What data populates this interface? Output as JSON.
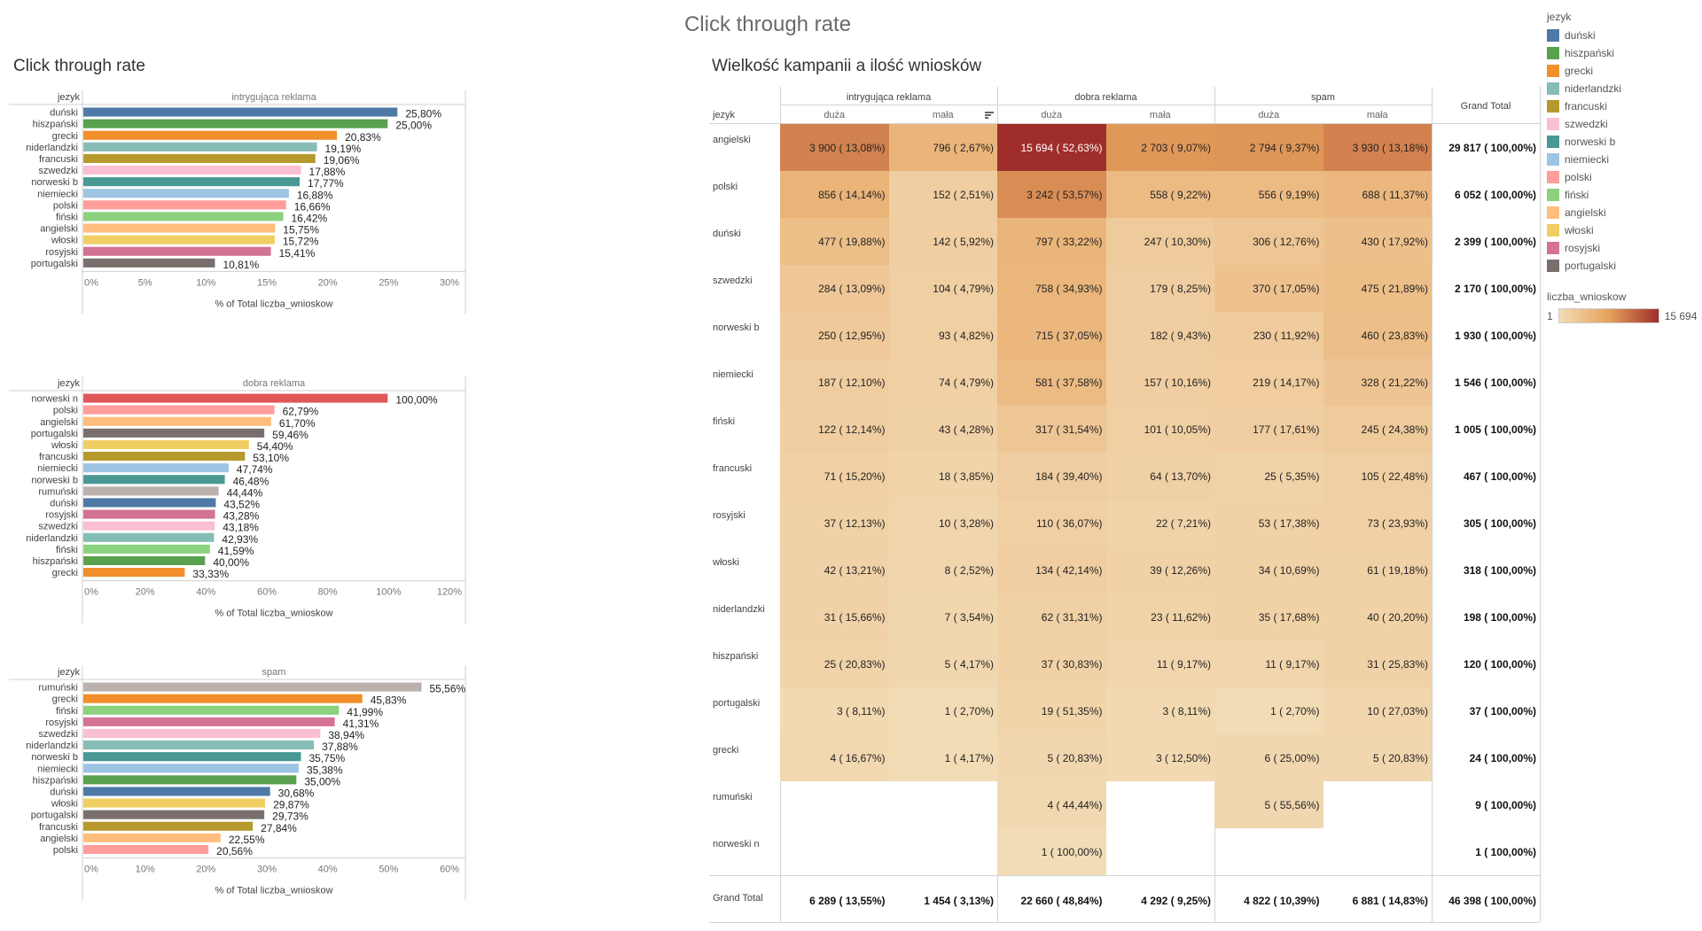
{
  "dashboard_title": "Click through rate",
  "left_title": "Click through rate",
  "right_title": "Wielkość kampanii a ilość wniosków",
  "legend": {
    "title": "jezyk",
    "items": [
      {
        "label": "duński",
        "color": "#4e79a7"
      },
      {
        "label": "hiszpański",
        "color": "#59a14f"
      },
      {
        "label": "grecki",
        "color": "#f28e2b"
      },
      {
        "label": "niderlandzki",
        "color": "#86bcb6"
      },
      {
        "label": "francuski",
        "color": "#b6992d"
      },
      {
        "label": "szwedzki",
        "color": "#fabfd2"
      },
      {
        "label": "norweski b",
        "color": "#499894"
      },
      {
        "label": "niemiecki",
        "color": "#9dc4e3"
      },
      {
        "label": "polski",
        "color": "#ff9d9a"
      },
      {
        "label": "fiński",
        "color": "#8cd17d"
      },
      {
        "label": "angielski",
        "color": "#ffbe7d"
      },
      {
        "label": "włoski",
        "color": "#f1ce63"
      },
      {
        "label": "rosyjski",
        "color": "#d37295"
      },
      {
        "label": "portugalski",
        "color": "#79706e"
      }
    ],
    "extra_colors": {
      "norweski n": "#e15759",
      "rumuński": "#bab0ac"
    },
    "gradient_title": "liczba_wnioskow",
    "gradient_min": "1",
    "gradient_max": "15 694"
  },
  "chart_data": [
    {
      "type": "bar",
      "orientation": "horizontal",
      "header": "intrygująca reklama",
      "row_header": "jezyk",
      "xlabel": "% of Total liczba_wnioskow",
      "xlim": [
        0,
        30
      ],
      "ticks": [
        "0%",
        "5%",
        "10%",
        "15%",
        "20%",
        "25%",
        "30%"
      ],
      "categories": [
        "duński",
        "hiszpański",
        "grecki",
        "niderlandzki",
        "francuski",
        "szwedzki",
        "norweski b",
        "niemiecki",
        "polski",
        "fiński",
        "angielski",
        "włoski",
        "rosyjski",
        "portugalski"
      ],
      "values": [
        25.8,
        25.0,
        20.83,
        19.19,
        19.06,
        17.88,
        17.77,
        16.88,
        16.66,
        16.42,
        15.75,
        15.72,
        15.41,
        10.81
      ],
      "labels": [
        "25,80%",
        "25,00%",
        "20,83%",
        "19,19%",
        "19,06%",
        "17,88%",
        "17,77%",
        "16,88%",
        "16,66%",
        "16,42%",
        "15,75%",
        "15,72%",
        "15,41%",
        "10,81%"
      ]
    },
    {
      "type": "bar",
      "orientation": "horizontal",
      "header": "dobra reklama",
      "row_header": "jezyk",
      "xlabel": "% of Total liczba_wnioskow",
      "xlim": [
        0,
        120
      ],
      "ticks": [
        "0%",
        "20%",
        "40%",
        "60%",
        "80%",
        "100%",
        "120%"
      ],
      "categories": [
        "norweski n",
        "polski",
        "angielski",
        "portugalski",
        "włoski",
        "francuski",
        "niemiecki",
        "norweski b",
        "rumuński",
        "duński",
        "rosyjski",
        "szwedzki",
        "niderlandzki",
        "fiński",
        "hiszpański",
        "grecki"
      ],
      "values": [
        100.0,
        62.79,
        61.7,
        59.46,
        54.4,
        53.1,
        47.74,
        46.48,
        44.44,
        43.52,
        43.28,
        43.18,
        42.93,
        41.59,
        40.0,
        33.33
      ],
      "labels": [
        "100,00%",
        "62,79%",
        "61,70%",
        "59,46%",
        "54,40%",
        "53,10%",
        "47,74%",
        "46,48%",
        "44,44%",
        "43,52%",
        "43,28%",
        "43,18%",
        "42,93%",
        "41,59%",
        "40,00%",
        "33,33%"
      ]
    },
    {
      "type": "bar",
      "orientation": "horizontal",
      "header": "spam",
      "row_header": "jezyk",
      "xlabel": "% of Total liczba_wnioskow",
      "xlim": [
        0,
        60
      ],
      "ticks": [
        "0%",
        "10%",
        "20%",
        "30%",
        "40%",
        "50%",
        "60%"
      ],
      "categories": [
        "rumuński",
        "grecki",
        "fiński",
        "rosyjski",
        "szwedzki",
        "niderlandzki",
        "norweski b",
        "niemiecki",
        "hiszpański",
        "duński",
        "włoski",
        "portugalski",
        "francuski",
        "angielski",
        "polski"
      ],
      "values": [
        55.56,
        45.83,
        41.99,
        41.31,
        38.94,
        37.88,
        35.75,
        35.38,
        35.0,
        30.68,
        29.87,
        29.73,
        27.84,
        22.55,
        20.56
      ],
      "labels": [
        "55,56%",
        "45,83%",
        "41,99%",
        "41,31%",
        "38,94%",
        "37,88%",
        "35,75%",
        "35,38%",
        "35,00%",
        "30,68%",
        "29,87%",
        "29,73%",
        "27,84%",
        "22,55%",
        "20,56%"
      ]
    },
    {
      "type": "heatmap",
      "row_header": "jezyk",
      "groups": [
        "intrygująca reklama",
        "dobra reklama",
        "spam"
      ],
      "sub_columns": [
        "duża",
        "mała"
      ],
      "grand_total_label": "Grand Total",
      "rows": [
        "angielski",
        "polski",
        "duński",
        "szwedzki",
        "norweski b",
        "niemiecki",
        "fiński",
        "francuski",
        "rosyjski",
        "włoski",
        "niderlandzki",
        "hiszpański",
        "portugalski",
        "grecki",
        "rumuński",
        "norweski n"
      ],
      "values": [
        [
          3900,
          796,
          15694,
          2703,
          2794,
          3930
        ],
        [
          856,
          152,
          3242,
          558,
          556,
          688
        ],
        [
          477,
          142,
          797,
          247,
          306,
          430
        ],
        [
          284,
          104,
          758,
          179,
          370,
          475
        ],
        [
          250,
          93,
          715,
          182,
          230,
          460
        ],
        [
          187,
          74,
          581,
          157,
          219,
          328
        ],
        [
          122,
          43,
          317,
          101,
          177,
          245
        ],
        [
          71,
          18,
          184,
          64,
          25,
          105
        ],
        [
          37,
          10,
          110,
          22,
          53,
          73
        ],
        [
          42,
          8,
          134,
          39,
          34,
          61
        ],
        [
          31,
          7,
          62,
          23,
          35,
          40
        ],
        [
          25,
          5,
          37,
          11,
          11,
          31
        ],
        [
          3,
          1,
          19,
          3,
          1,
          10
        ],
        [
          4,
          1,
          5,
          3,
          6,
          5
        ],
        [
          null,
          null,
          4,
          null,
          5,
          null
        ],
        [
          null,
          null,
          1,
          null,
          null,
          null
        ]
      ],
      "labels": [
        [
          "3 900 ( 13,08%)",
          "796 ( 2,67%)",
          "15 694 ( 52,63%)",
          "2 703 ( 9,07%)",
          "2 794 ( 9,37%)",
          "3 930 ( 13,18%)"
        ],
        [
          "856 ( 14,14%)",
          "152 ( 2,51%)",
          "3 242 ( 53,57%)",
          "558 ( 9,22%)",
          "556 ( 9,19%)",
          "688 ( 11,37%)"
        ],
        [
          "477 ( 19,88%)",
          "142 ( 5,92%)",
          "797 ( 33,22%)",
          "247 ( 10,30%)",
          "306 ( 12,76%)",
          "430 ( 17,92%)"
        ],
        [
          "284 ( 13,09%)",
          "104 ( 4,79%)",
          "758 ( 34,93%)",
          "179 ( 8,25%)",
          "370 ( 17,05%)",
          "475 ( 21,89%)"
        ],
        [
          "250 ( 12,95%)",
          "93 ( 4,82%)",
          "715 ( 37,05%)",
          "182 ( 9,43%)",
          "230 ( 11,92%)",
          "460 ( 23,83%)"
        ],
        [
          "187 ( 12,10%)",
          "74 ( 4,79%)",
          "581 ( 37,58%)",
          "157 ( 10,16%)",
          "219 ( 14,17%)",
          "328 ( 21,22%)"
        ],
        [
          "122 ( 12,14%)",
          "43 ( 4,28%)",
          "317 ( 31,54%)",
          "101 ( 10,05%)",
          "177 ( 17,61%)",
          "245 ( 24,38%)"
        ],
        [
          "71 ( 15,20%)",
          "18 ( 3,85%)",
          "184 ( 39,40%)",
          "64 ( 13,70%)",
          "25 ( 5,35%)",
          "105 ( 22,48%)"
        ],
        [
          "37 ( 12,13%)",
          "10 ( 3,28%)",
          "110 ( 36,07%)",
          "22 ( 7,21%)",
          "53 ( 17,38%)",
          "73 ( 23,93%)"
        ],
        [
          "42 ( 13,21%)",
          "8 ( 2,52%)",
          "134 ( 42,14%)",
          "39 ( 12,26%)",
          "34 ( 10,69%)",
          "61 ( 19,18%)"
        ],
        [
          "31 ( 15,66%)",
          "7 ( 3,54%)",
          "62 ( 31,31%)",
          "23 ( 11,62%)",
          "35 ( 17,68%)",
          "40 ( 20,20%)"
        ],
        [
          "25 ( 20,83%)",
          "5 ( 4,17%)",
          "37 ( 30,83%)",
          "11 ( 9,17%)",
          "11 ( 9,17%)",
          "31 ( 25,83%)"
        ],
        [
          "3 ( 8,11%)",
          "1 ( 2,70%)",
          "19 ( 51,35%)",
          "3 ( 8,11%)",
          "1 ( 2,70%)",
          "10 ( 27,03%)"
        ],
        [
          "4 ( 16,67%)",
          "1 ( 4,17%)",
          "5 ( 20,83%)",
          "3 ( 12,50%)",
          "6 ( 25,00%)",
          "5 ( 20,83%)"
        ],
        [
          "",
          "",
          "4 ( 44,44%)",
          "",
          "5 ( 55,56%)",
          ""
        ],
        [
          "",
          "",
          "1 ( 100,00%)",
          "",
          "",
          ""
        ]
      ],
      "row_totals": [
        "29 817 ( 100,00%)",
        "6 052 ( 100,00%)",
        "2 399 ( 100,00%)",
        "2 170 ( 100,00%)",
        "1 930 ( 100,00%)",
        "1 546 ( 100,00%)",
        "1 005 ( 100,00%)",
        "467 ( 100,00%)",
        "305 ( 100,00%)",
        "318 ( 100,00%)",
        "198 ( 100,00%)",
        "120 ( 100,00%)",
        "37 ( 100,00%)",
        "24 ( 100,00%)",
        "9 ( 100,00%)",
        "1 ( 100,00%)"
      ],
      "column_totals": [
        "6 289 ( 13,55%)",
        "1 454 ( 3,13%)",
        "22 660 ( 48,84%)",
        "4 292 ( 9,25%)",
        "4 822 ( 10,39%)",
        "6 881 ( 14,83%)"
      ],
      "grand_total": "46 398 ( 100,00%)",
      "color_scale": {
        "min": 1,
        "max": 15694
      }
    }
  ]
}
